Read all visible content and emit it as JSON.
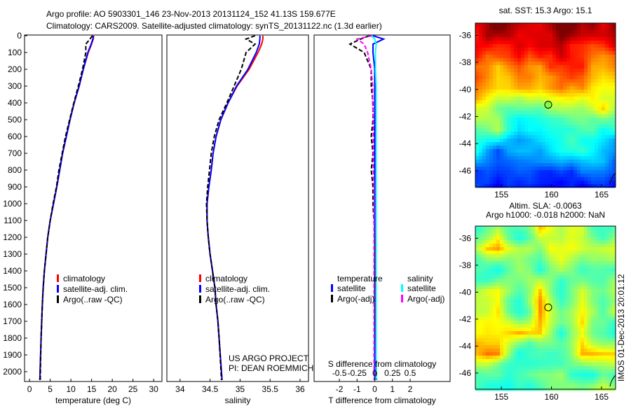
{
  "title_line1": "Argo profile: AO 5903301_146 23-Nov-2013 20131124_152 41.13S 159.677E",
  "title_line2": "Climatology: CARS2009. Satellite-adjusted climatology: synTS_20131122.nc (1.3d earlier)",
  "credit": [
    "US ARGO PROJECT",
    "PI: DEAN ROEMMICH"
  ],
  "side_stamp": "IMOS 01-Dec-2013 20:01:12",
  "colors": {
    "climatology": "#ff0000",
    "satellite": "#0000ff",
    "argo": "#000000",
    "sal_satellite": "#00ffff",
    "sal_argo": "#ff00ff"
  },
  "chart_data": [
    {
      "type": "line",
      "name": "temperature",
      "xlabel": "temperature (deg C)",
      "xlim": [
        -1.2,
        32
      ],
      "ylim": [
        2050,
        0
      ],
      "xticks": [
        0,
        5,
        10,
        15,
        20,
        25,
        30
      ],
      "yticks": [
        0,
        100,
        200,
        300,
        400,
        500,
        600,
        700,
        800,
        900,
        1000,
        1100,
        1200,
        1300,
        1400,
        1500,
        1600,
        1700,
        1800,
        1900,
        2000
      ],
      "legend": [
        "climatology",
        "satellite-adj. clim.",
        "Argo(..raw -QC)"
      ],
      "depth": [
        0,
        20,
        50,
        100,
        200,
        300,
        400,
        500,
        600,
        700,
        800,
        900,
        1000,
        1100,
        1200,
        1300,
        1400,
        1500,
        1600,
        1800,
        2050
      ],
      "series": [
        {
          "name": "climatology",
          "values": [
            15.5,
            15.4,
            15,
            14.2,
            13,
            12,
            10.8,
            9.8,
            8.9,
            8,
            7.3,
            6.6,
            5.8,
            5,
            4.4,
            4,
            3.6,
            3.3,
            3.1,
            2.8,
            2.5
          ]
        },
        {
          "name": "satellite-adj. clim.",
          "values": [
            15.4,
            15.3,
            14.9,
            14.1,
            13,
            12,
            10.8,
            9.8,
            8.9,
            8,
            7.3,
            6.6,
            5.8,
            5,
            4.4,
            4,
            3.6,
            3.3,
            3.1,
            2.8,
            2.5
          ]
        },
        {
          "name": "Argo(..raw -QC)",
          "values": [
            15.2,
            14.6,
            13.6,
            13.6,
            12.8,
            11.8,
            10.7,
            9.7,
            8.7,
            7.9,
            7.1,
            6.5,
            5.7,
            5,
            4.4,
            4,
            3.6,
            3.3,
            3.1,
            2.8,
            2.6
          ]
        }
      ]
    },
    {
      "type": "line",
      "name": "salinity",
      "xlabel": "salinity",
      "xlim": [
        33.78,
        36.14
      ],
      "ylim": [
        2050,
        0
      ],
      "xticks": [
        34,
        34.5,
        35,
        35.5,
        36
      ],
      "legend": [
        "climatology",
        "satellite-adj. clim.",
        "Argo(..raw -QC)"
      ],
      "depth": [
        0,
        20,
        50,
        100,
        200,
        300,
        400,
        500,
        600,
        700,
        800,
        900,
        1000,
        1100,
        1200,
        1300,
        1400,
        1500,
        1600,
        1700,
        1800,
        2050
      ],
      "series": [
        {
          "name": "climatology",
          "values": [
            35.38,
            35.38,
            35.36,
            35.3,
            35.15,
            34.95,
            34.8,
            34.68,
            34.6,
            34.55,
            34.52,
            34.48,
            34.45,
            34.45,
            34.47,
            34.5,
            34.54,
            34.58,
            34.6,
            34.63,
            34.65,
            34.7
          ]
        },
        {
          "name": "satellite-adj. clim.",
          "values": [
            35.33,
            35.33,
            35.32,
            35.27,
            35.13,
            34.94,
            34.8,
            34.68,
            34.6,
            34.55,
            34.52,
            34.48,
            34.45,
            34.45,
            34.47,
            34.5,
            34.54,
            34.58,
            34.6,
            34.63,
            34.65,
            34.7
          ]
        },
        {
          "name": "Argo(..raw -QC)",
          "values": [
            35.25,
            35.1,
            35.25,
            35.1,
            35.02,
            34.9,
            34.78,
            34.65,
            34.57,
            34.52,
            34.49,
            34.46,
            34.44,
            34.45,
            34.47,
            34.5,
            34.54,
            34.58,
            34.6,
            34.63,
            34.65,
            34.69
          ]
        }
      ]
    },
    {
      "type": "line",
      "name": "difference",
      "xlabel": "T difference from climatology",
      "x2label": "S difference from climatology",
      "xlim": [
        -3.43,
        4.26
      ],
      "ylim": [
        2050,
        0
      ],
      "xticks": [
        -2,
        -1,
        0,
        1,
        2
      ],
      "x2ticks": [
        "-0.5",
        "-0.25",
        "0",
        "0.25",
        "0.5"
      ],
      "legend_titles": [
        "temperature",
        "salinity"
      ],
      "legend": [
        "satellite",
        "Argo(-adj)",
        "satellite",
        "Argo(-adj)"
      ],
      "depth": [
        0,
        20,
        50,
        100,
        200,
        300,
        400,
        500,
        600,
        700,
        800,
        900,
        1000,
        1200,
        1500,
        2050
      ],
      "series": [
        {
          "name": "T satellite",
          "values": [
            -0.1,
            0.5,
            -0.1,
            -0.1,
            0,
            0,
            0,
            0,
            0,
            0,
            0,
            0,
            0,
            0,
            0,
            0
          ]
        },
        {
          "name": "T Argo(-adj)",
          "values": [
            -0.3,
            -0.8,
            -1.4,
            -0.6,
            -0.2,
            -0.2,
            -0.1,
            -0.1,
            -0.2,
            -0.1,
            -0.2,
            -0.1,
            -0.1,
            0,
            0,
            0.1
          ]
        },
        {
          "name": "S satellite",
          "values": [
            -0.05,
            0.0,
            0.02,
            0.01,
            0.01,
            0.02,
            0.02,
            0.02,
            0.02,
            0.02,
            0.02,
            0.02,
            0.02,
            0.02,
            0.02,
            0.02
          ]
        },
        {
          "name": "S Argo(-adj)",
          "values": [
            -0.04,
            -0.25,
            -0.15,
            -0.1,
            -0.05,
            -0.03,
            -0.03,
            -0.02,
            -0.02,
            -0.02,
            -0.02,
            -0.01,
            -0.01,
            -0.01,
            -0.01,
            -0.01
          ]
        }
      ]
    },
    {
      "type": "heatmap",
      "name": "sst-map",
      "title": "sat. SST: 15.3 Argo: 15.1",
      "xlim": [
        152.4,
        166.4
      ],
      "ylim": [
        -47.2,
        -35.1
      ],
      "xticks": [
        155,
        160,
        165
      ],
      "yticks": [
        -36,
        -38,
        -40,
        -42,
        -44,
        -46
      ],
      "marker": [
        159.677,
        -41.13
      ]
    },
    {
      "type": "heatmap",
      "name": "sla-map",
      "title": [
        "Altim. SLA: -0.0063",
        "Argo h1000: -0.018 h2000: NaN"
      ],
      "xlim": [
        152.4,
        166.4
      ],
      "ylim": [
        -47.2,
        -35.1
      ],
      "xticks": [
        155,
        160,
        165
      ],
      "yticks": [
        -36,
        -38,
        -40,
        -42,
        -44,
        -46
      ],
      "marker": [
        159.677,
        -41.13
      ]
    }
  ]
}
